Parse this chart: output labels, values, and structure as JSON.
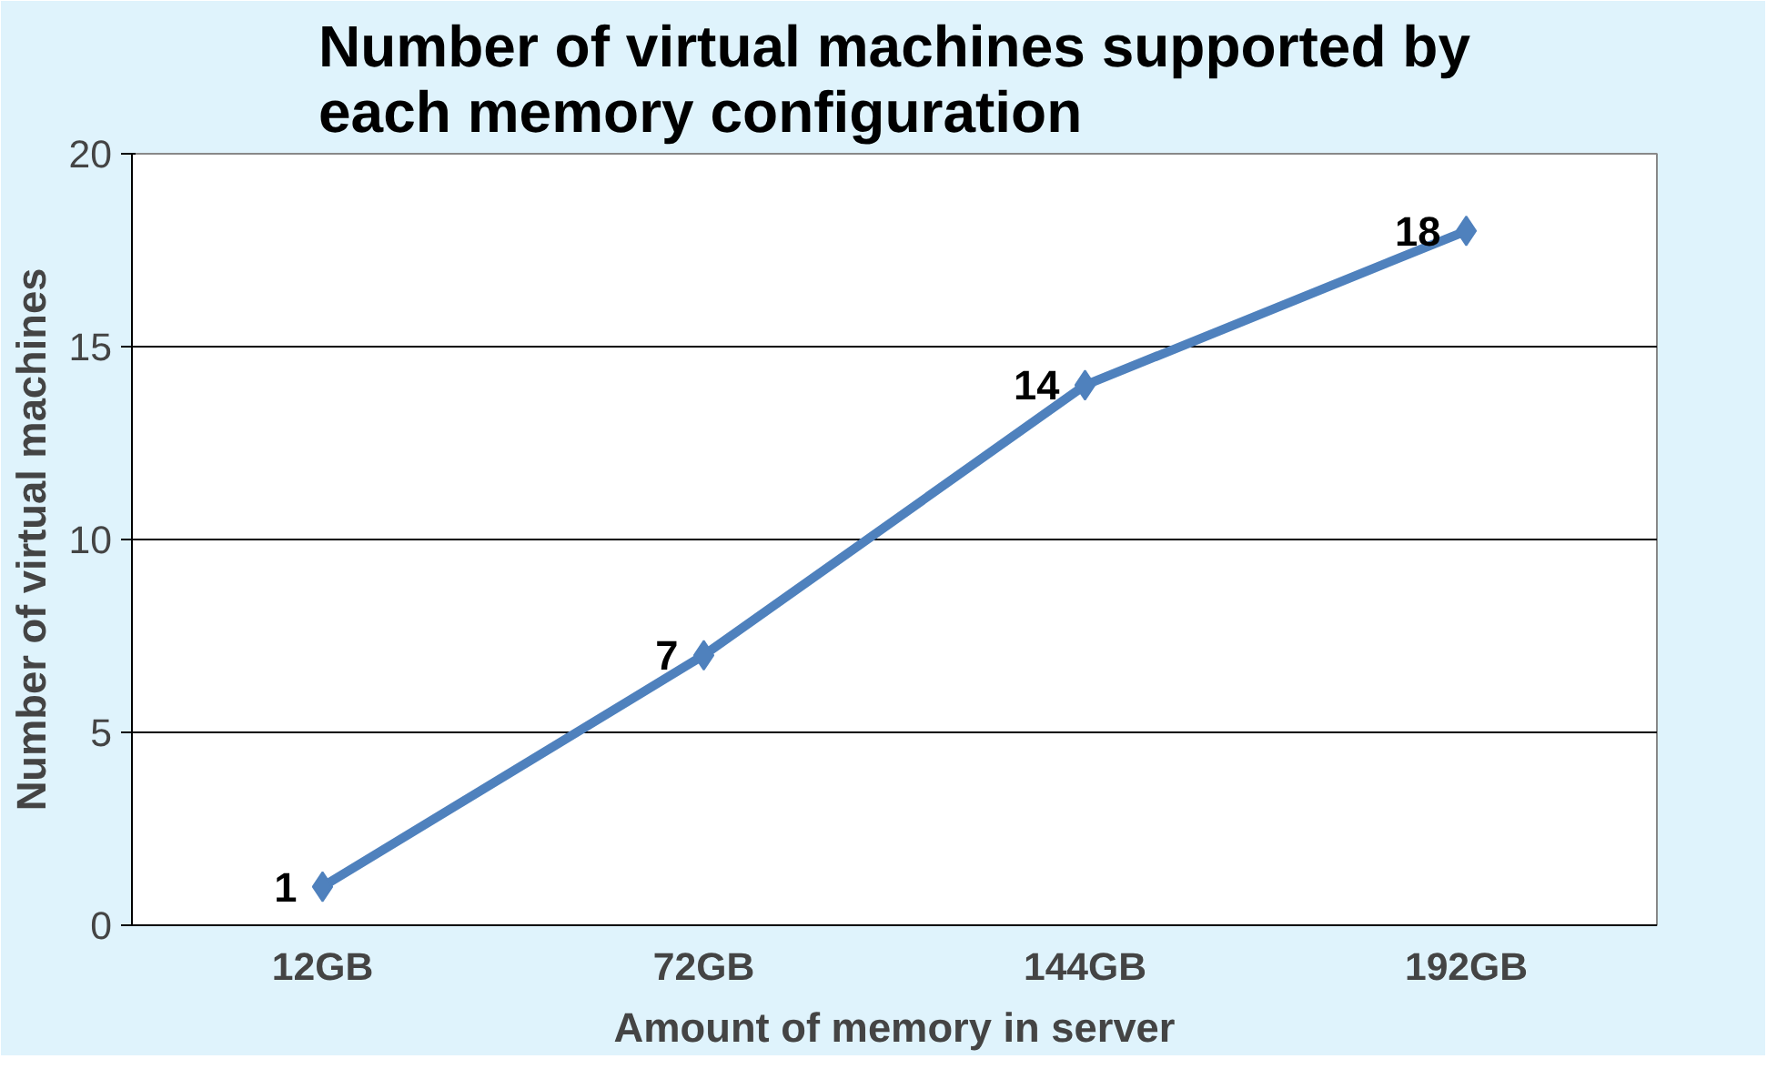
{
  "chart_data": {
    "type": "line",
    "title": "Number of virtual machines supported by each memory configuration",
    "xlabel": "Amount of memory in server",
    "ylabel": "Number of virtual machines",
    "categories": [
      "12GB",
      "72GB",
      "144GB",
      "192GB"
    ],
    "series": [
      {
        "color": "#4f81bd",
        "values": [
          1,
          7,
          14,
          18
        ]
      }
    ],
    "ylim": [
      0,
      20
    ],
    "yticks": [
      0,
      5,
      10,
      15,
      20
    ],
    "grid": "y",
    "marker": "diamond",
    "line_style": "solid",
    "data_labels": true
  }
}
